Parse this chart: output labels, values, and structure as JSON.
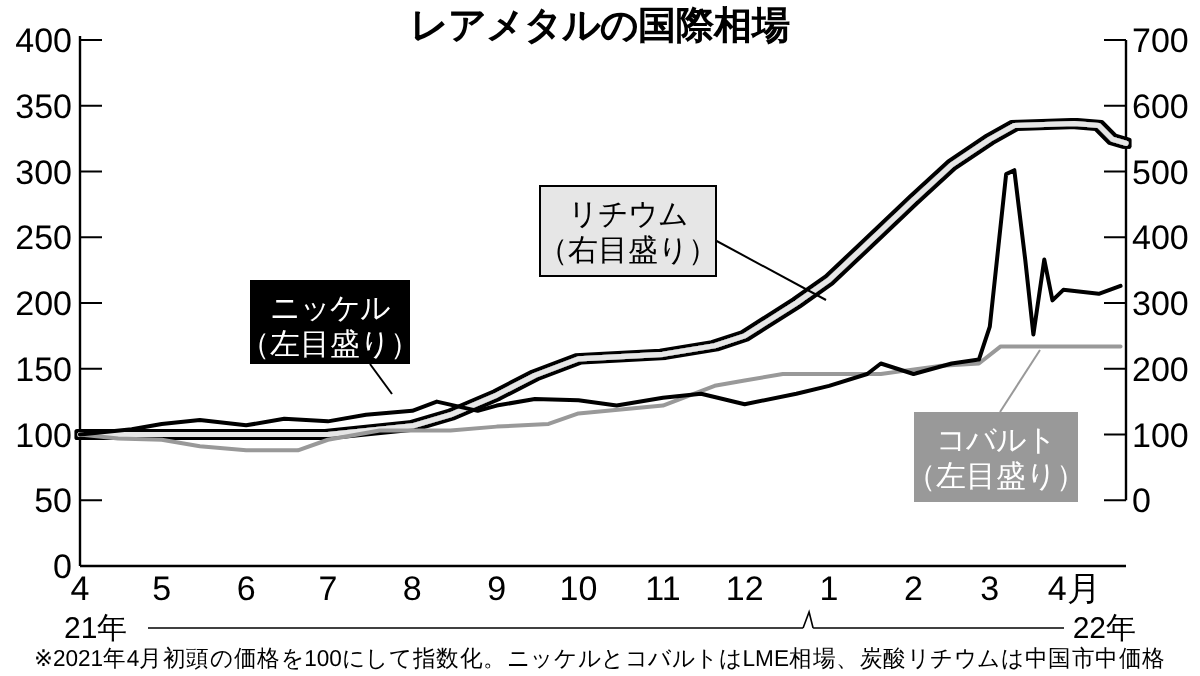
{
  "chart_data": {
    "type": "line",
    "title": "レアメタルの国際相場",
    "xlim": [
      "2021-04-01",
      "2022-04-20"
    ],
    "xticks": [
      {
        "value": "2021-04-01",
        "label": "4"
      },
      {
        "value": "2021-05-01",
        "label": "5"
      },
      {
        "value": "2021-06-01",
        "label": "6"
      },
      {
        "value": "2021-07-01",
        "label": "7"
      },
      {
        "value": "2021-08-01",
        "label": "8"
      },
      {
        "value": "2021-09-01",
        "label": "9"
      },
      {
        "value": "2021-10-01",
        "label": "10"
      },
      {
        "value": "2021-11-01",
        "label": "11"
      },
      {
        "value": "2021-12-01",
        "label": "12"
      },
      {
        "value": "2022-01-01",
        "label": "1"
      },
      {
        "value": "2022-02-01",
        "label": "2"
      },
      {
        "value": "2022-03-01",
        "label": "3"
      },
      {
        "value": "2022-04-01",
        "label": "4月"
      }
    ],
    "ylim": [
      0,
      400
    ],
    "yticks": [
      0,
      50,
      100,
      150,
      200,
      250,
      300,
      350,
      400
    ],
    "y2lim": [
      -100,
      700
    ],
    "y2ticks": [
      0,
      100,
      200,
      300,
      400,
      500,
      600,
      700
    ],
    "grid": false,
    "legend": "bottom right",
    "series": [
      {
        "name": "ニッケル（左目盛り）",
        "color": "#000000",
        "x": [
          "2021-04-01",
          "2021-04-20",
          "2021-05-01",
          "2021-05-15",
          "2021-06-01",
          "2021-06-15",
          "2021-07-01",
          "2021-07-15",
          "2021-08-01",
          "2021-08-10",
          "2021-08-25",
          "2021-09-01",
          "2021-09-15",
          "2021-10-01",
          "2021-10-15",
          "2021-11-01",
          "2021-11-15",
          "2021-12-01",
          "2021-12-20",
          "2022-01-01",
          "2022-01-15",
          "2022-01-20",
          "2022-02-01",
          "2022-02-15",
          "2022-02-25",
          "2022-03-01",
          "2022-03-07",
          "2022-03-10",
          "2022-03-14",
          "2022-03-17",
          "2022-03-21",
          "2022-03-24",
          "2022-03-28",
          "2022-04-10",
          "2022-04-18"
        ],
        "values": [
          100,
          104,
          108,
          111,
          107,
          112,
          110,
          115,
          118,
          125,
          118,
          122,
          127,
          126,
          122,
          128,
          131,
          123,
          131,
          137,
          146,
          154,
          146,
          154,
          157,
          182,
          298,
          301,
          233,
          176,
          233,
          202,
          210,
          207,
          213
        ]
      },
      {
        "name": "リチウム（右目盛り）",
        "color": "#e6e6e6",
        "axis": "y2",
        "x": [
          "2021-04-01",
          "2021-05-15",
          "2021-07-01",
          "2021-08-01",
          "2021-08-15",
          "2021-09-01",
          "2021-09-15",
          "2021-10-01",
          "2021-11-01",
          "2021-11-20",
          "2021-12-01",
          "2021-12-20",
          "2022-01-01",
          "2022-01-15",
          "2022-02-01",
          "2022-02-15",
          "2022-03-01",
          "2022-03-10",
          "2022-04-01",
          "2022-04-10",
          "2022-04-15",
          "2022-04-20"
        ],
        "values": [
          100,
          100,
          100,
          113,
          130,
          160,
          190,
          215,
          222,
          235,
          250,
          300,
          335,
          390,
          457,
          510,
          549,
          570,
          573,
          570,
          549,
          543
        ]
      },
      {
        "name": "コバルト（左目盛り）",
        "color": "#999999",
        "x": [
          "2021-04-01",
          "2021-04-15",
          "2021-05-01",
          "2021-05-15",
          "2021-06-01",
          "2021-06-20",
          "2021-07-01",
          "2021-07-20",
          "2021-08-15",
          "2021-09-01",
          "2021-09-20",
          "2021-10-01",
          "2021-11-01",
          "2021-11-20",
          "2021-12-01",
          "2021-12-15",
          "2022-01-20",
          "2022-02-10",
          "2022-02-25",
          "2022-03-05",
          "2022-04-18"
        ],
        "values": [
          100,
          97,
          96,
          91,
          88,
          88,
          96,
          103,
          103,
          106,
          108,
          116,
          122,
          137,
          141,
          146,
          146,
          152,
          154,
          167,
          167
        ]
      }
    ],
    "annotations": [
      "21年",
      "22年",
      "※2021年4月初頭の価格を100にして指数化。ニッケルとコバルトはLME相場、炭酸リチウムは中国市中価格"
    ]
  }
}
